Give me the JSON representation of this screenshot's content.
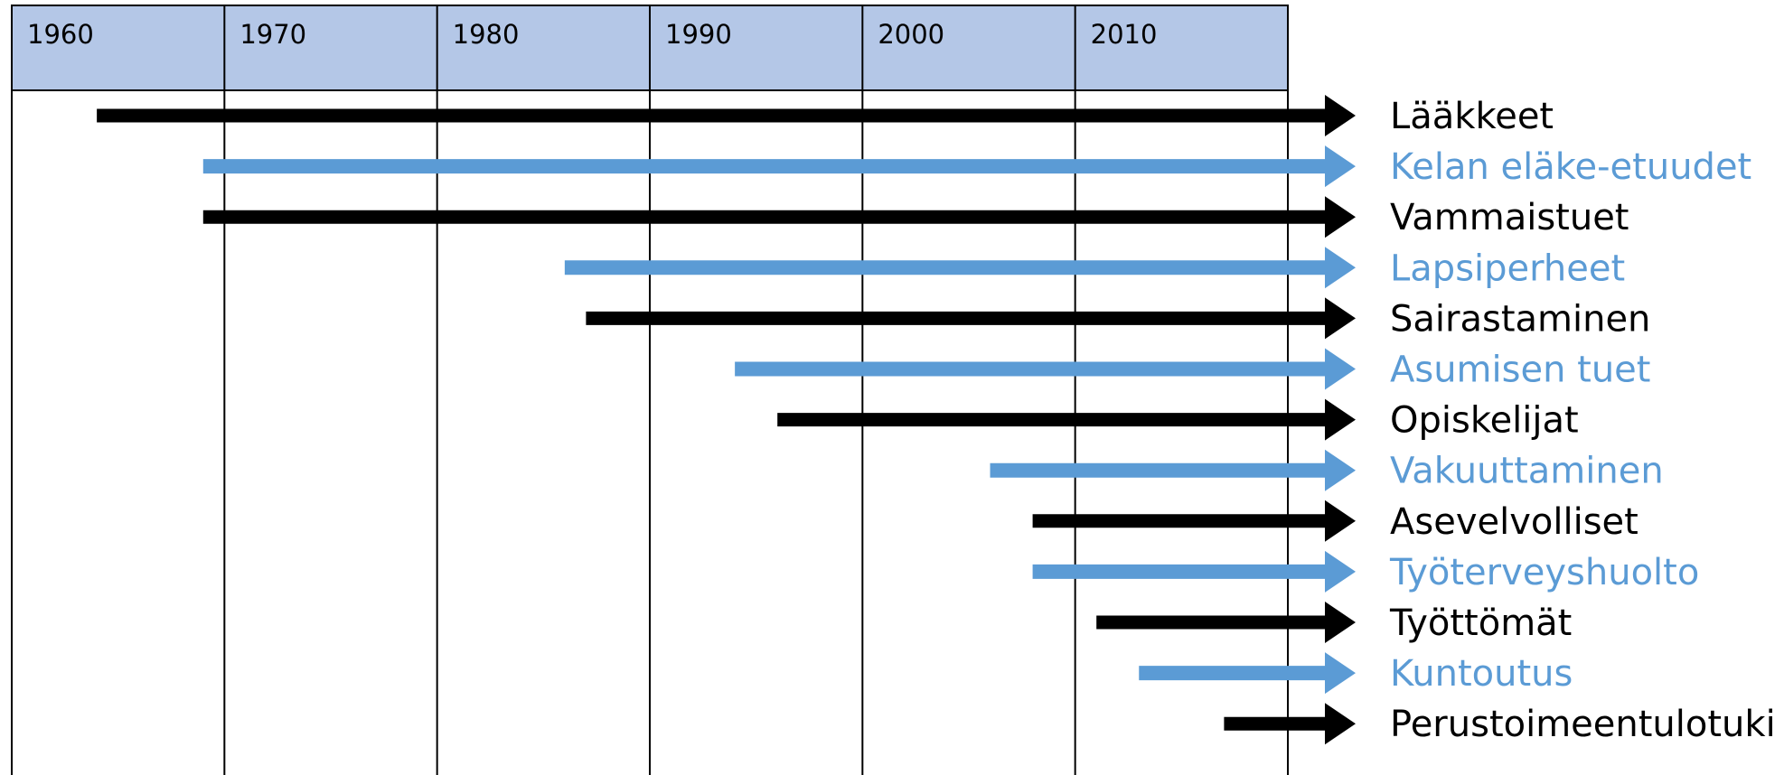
{
  "chart_data": {
    "type": "timeline",
    "x_axis": {
      "ticks": [
        "1960",
        "1970",
        "1980",
        "1990",
        "2000",
        "2010"
      ],
      "range": [
        1960,
        2020
      ]
    },
    "arrow_end_beyond_axis": true,
    "colors": {
      "black": "#000000",
      "blue": "#5b9bd5",
      "header_fill": "#b4c7e7"
    },
    "series": [
      {
        "name": "Lääkkeet",
        "start_year": 1964,
        "color": "black"
      },
      {
        "name": "Kelan eläke-etuudet",
        "start_year": 1969,
        "color": "blue"
      },
      {
        "name": "Vammaistuet",
        "start_year": 1969,
        "color": "black"
      },
      {
        "name": "Lapsiperheet",
        "start_year": 1986,
        "color": "blue"
      },
      {
        "name": "Sairastaminen",
        "start_year": 1987,
        "color": "black"
      },
      {
        "name": "Asumisen tuet",
        "start_year": 1994,
        "color": "blue"
      },
      {
        "name": "Opiskelijat",
        "start_year": 1996,
        "color": "black"
      },
      {
        "name": "Vakuuttaminen",
        "start_year": 2006,
        "color": "blue"
      },
      {
        "name": "Asevelvolliset",
        "start_year": 2008,
        "color": "black"
      },
      {
        "name": "Työterveyshuolto",
        "start_year": 2008,
        "color": "blue"
      },
      {
        "name": "Työttömät",
        "start_year": 2011,
        "color": "black"
      },
      {
        "name": "Kuntoutus",
        "start_year": 2013,
        "color": "blue"
      },
      {
        "name": "Perustoimeentulotuki",
        "start_year": 2017,
        "color": "black"
      }
    ]
  }
}
